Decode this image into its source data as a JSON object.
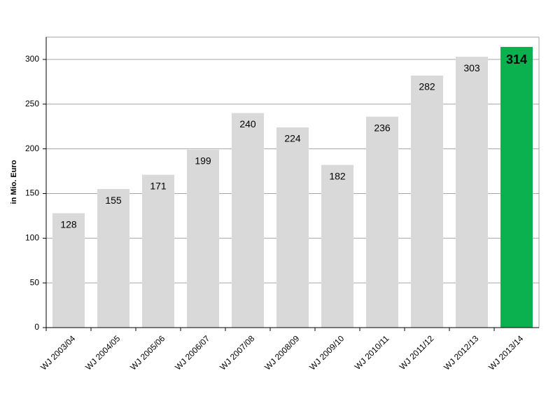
{
  "chart_data": {
    "type": "bar",
    "y_label": "in Mio. Euro",
    "categories": [
      "WJ 2003/04",
      "WJ 2004/05",
      "WJ 2005/06",
      "WJ 2006/07",
      "WJ 2007/08",
      "WJ 2008/09",
      "WJ 2009/10",
      "WJ 2010/11",
      "WJ 2011/12",
      "WJ 2012/13",
      "WJ 2013/14"
    ],
    "values": [
      128,
      155,
      171,
      199,
      240,
      224,
      182,
      236,
      282,
      303,
      314
    ],
    "colors": [
      "#d9d9d9",
      "#d9d9d9",
      "#d9d9d9",
      "#d9d9d9",
      "#d9d9d9",
      "#d9d9d9",
      "#d9d9d9",
      "#d9d9d9",
      "#d9d9d9",
      "#d9d9d9",
      "#0bb04f"
    ],
    "ylim": [
      0,
      325
    ],
    "yticks": [
      0,
      50,
      100,
      150,
      200,
      250,
      300
    ],
    "grid": true
  }
}
